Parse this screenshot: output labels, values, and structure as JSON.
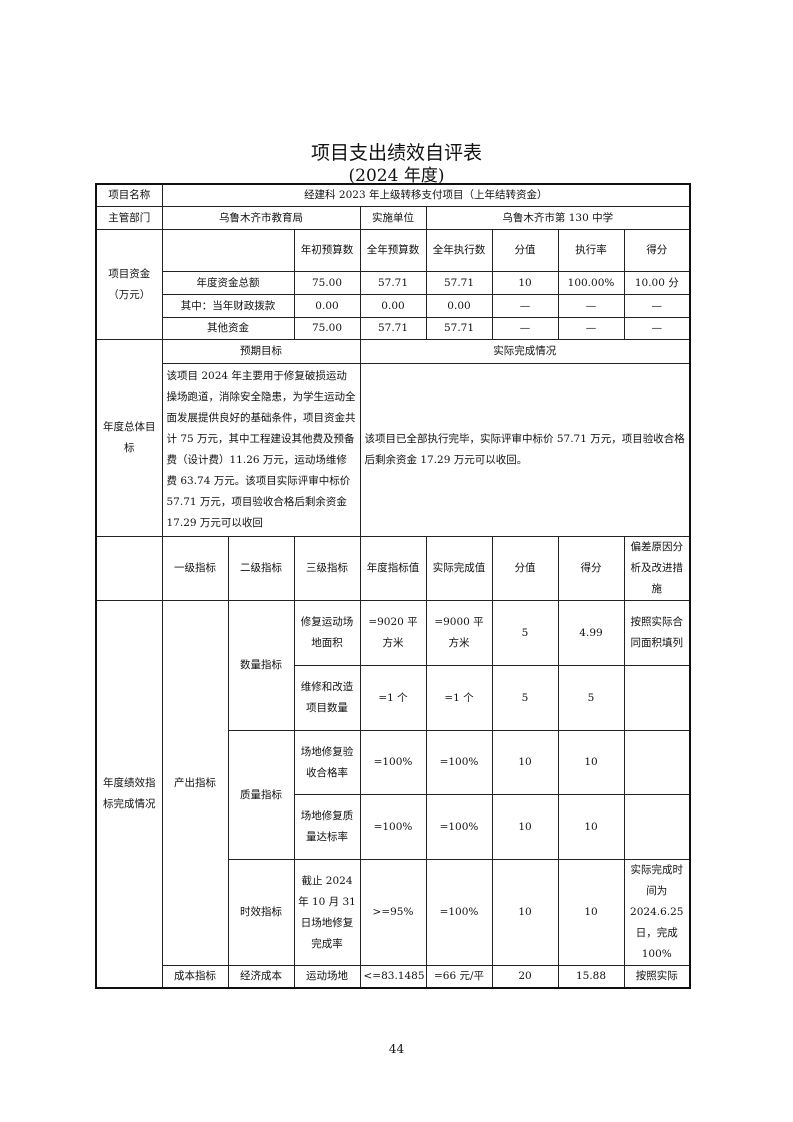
{
  "title": "项目支出绩效自评表",
  "subtitle": "(2024 年度)",
  "project_name_label": "项目名称",
  "project_name": "经建科 2023 年上级转移支付项目（上年结转资金）",
  "dept_label": "主管部门",
  "dept": "乌鲁木齐市教育局",
  "impl_label": "实施单位",
  "impl": "乌鲁木齐市第 130 中学",
  "funds": {
    "label": "项目资金（万元）",
    "headers": [
      "年初预算数",
      "全年预算数",
      "全年执行数",
      "分值",
      "执行率",
      "得分"
    ],
    "rows": [
      {
        "label": "年度资金总额",
        "values": [
          "75.00",
          "57.71",
          "57.71",
          "10",
          "100.00%",
          "10.00 分"
        ]
      },
      {
        "label": "其中：当年财政拨款",
        "values": [
          "0.00",
          "0.00",
          "0.00",
          "—",
          "—",
          "—"
        ]
      },
      {
        "label": "其他资金",
        "values": [
          "75.00",
          "57.71",
          "57.71",
          "—",
          "—",
          "—"
        ]
      }
    ]
  },
  "goal": {
    "label": "年度总体目标",
    "expected_label": "预期目标",
    "actual_label": "实际完成情况",
    "expected": "该项目 2024 年主要用于修复破损运动操场跑道，消除安全隐患，为学生运动全面发展提供良好的基础条件，项目资金共计 75 万元，其中工程建设其他费及预备费（设计费）11.26 万元，运动场维修费 63.74 万元。该项目实际评审中标价 57.71 万元，项目验收合格后剩余资金 17.29 万元可以收回",
    "actual": "该项目已全部执行完毕，实际评审中标价 57.71 万元，项目验收合格后剩余资金 17.29 万元可以收回。"
  },
  "indicators": {
    "label": "年度绩效指标完成情况",
    "headers": [
      "一级指标",
      "二级指标",
      "三级指标",
      "年度指标值",
      "实际完成值",
      "分值",
      "得分",
      "偏差原因分析及改进措施"
    ],
    "level1": "产出指标",
    "quantity": "数量指标",
    "quality": "质量指标",
    "timeliness": "时效指标",
    "rows": [
      [
        "修复运动场地面积",
        "=9020 平方米",
        "=9000 平方米",
        "5",
        "4.99",
        "按照实际合同面积填列"
      ],
      [
        "维修和改造项目数量",
        "=1 个",
        "=1 个",
        "5",
        "5",
        ""
      ],
      [
        "场地修复验收合格率",
        "=100%",
        "=100%",
        "10",
        "10",
        ""
      ],
      [
        "场地修复质量达标率",
        "=100%",
        "=100%",
        "10",
        "10",
        ""
      ],
      [
        "截止 2024 年 10 月 31 日场地修复完成率",
        ">=95%",
        "=100%",
        "10",
        "10",
        "实际完成时间为 2024.6.25 日，完成 100%"
      ]
    ],
    "cost_row": [
      "成本指标",
      "经济成本",
      "运动场地",
      "<=83.1485",
      "=66 元/平",
      "20",
      "15.88",
      "按照实际"
    ]
  },
  "page_number": "44"
}
